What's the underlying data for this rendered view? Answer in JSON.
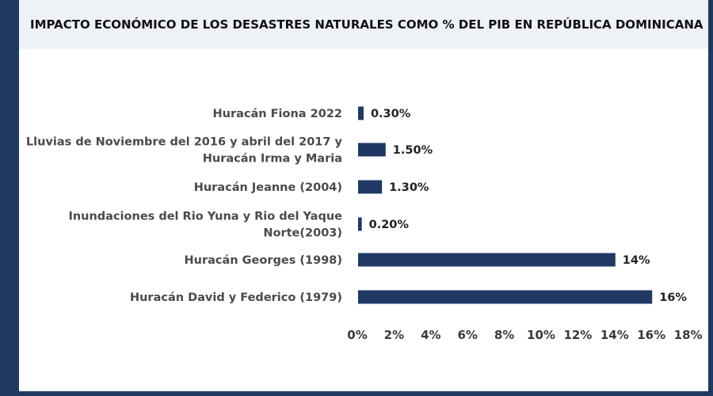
{
  "title": "IMPACTO ECONÓMICO DE LOS DESASTRES NATURALES COMO % DEL PIB EN REPÚBLICA DOMINICANA",
  "colors": {
    "bar": "#1f3864",
    "frame": "#1f3a60",
    "title_background": "#eef1f6"
  },
  "chart_data": {
    "type": "bar",
    "orientation": "horizontal",
    "title": "IMPACTO ECONÓMICO DE LOS DESASTRES NATURALES COMO % DEL PIB EN REPÚBLICA DOMINICANA",
    "categories": [
      [
        "Huracán Fiona 2022"
      ],
      [
        "Lluvias de Noviembre del 2016 y abril del 2017 y",
        "Huracán Irma y Maria"
      ],
      [
        "Huracán Jeanne (2004)"
      ],
      [
        "Inundaciones del Rio Yuna y Rio del Yaque",
        "Norte(2003)"
      ],
      [
        "Huracán Georges (1998)"
      ],
      [
        "Huracán David y Federico (1979)"
      ]
    ],
    "values": [
      0.3,
      1.5,
      1.3,
      0.2,
      14,
      16
    ],
    "value_labels": [
      "0.30%",
      "1.50%",
      "1.30%",
      "0.20%",
      "14%",
      "16%"
    ],
    "xlim": [
      0,
      18
    ],
    "x_ticks": [
      "0%",
      "2%",
      "4%",
      "6%",
      "8%",
      "10%",
      "12%",
      "14%",
      "16%",
      "18%"
    ],
    "xlabel": "",
    "ylabel": "",
    "grid": false,
    "legend": "none"
  }
}
